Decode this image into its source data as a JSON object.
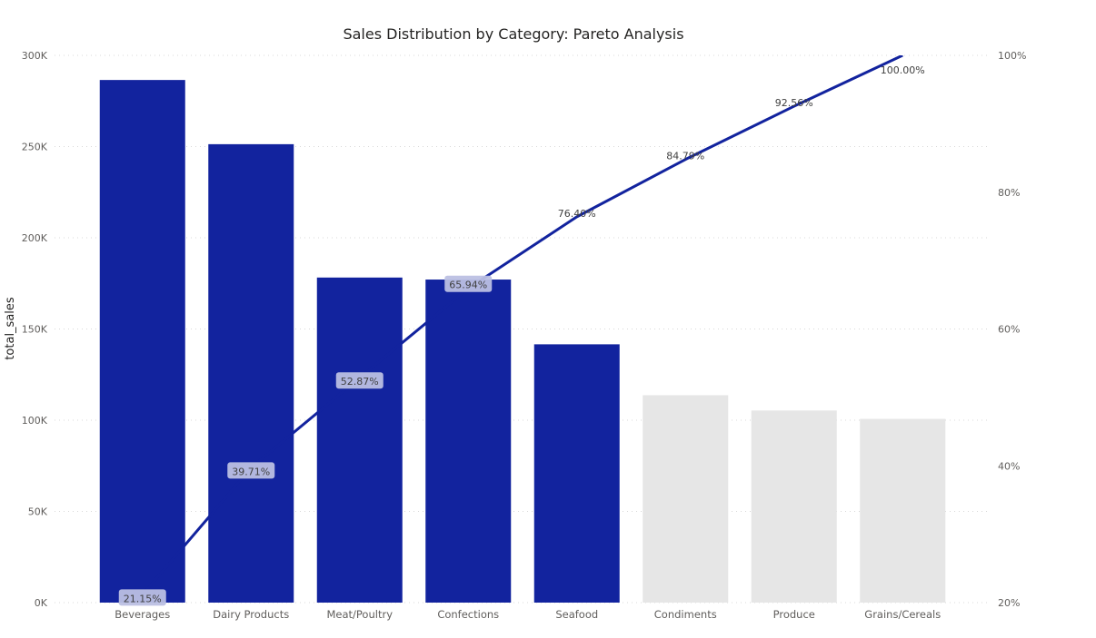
{
  "chart_data": {
    "type": "bar",
    "title": "Sales Distribution by Category: Pareto Analysis",
    "xlabel": "",
    "ylabel": "total_sales",
    "categories": [
      "Beverages",
      "Dairy Products",
      "Meat/Poultry",
      "Confections",
      "Seafood",
      "Condiments",
      "Produce",
      "Grains/Cereals"
    ],
    "series": [
      {
        "type": "bar",
        "values": [
          286500,
          251300,
          178200,
          177100,
          141600,
          113700,
          105300,
          100700
        ],
        "colors": [
          "#12239e",
          "#12239e",
          "#12239e",
          "#12239e",
          "#12239e",
          "#e6e6e6",
          "#e6e6e6",
          "#e6e6e6"
        ]
      },
      {
        "type": "line",
        "axis": "right",
        "values": [
          21.15,
          39.71,
          52.87,
          65.94,
          76.4,
          84.79,
          92.56,
          100.0
        ],
        "labels": [
          "21.15%",
          "39.71%",
          "52.87%",
          "65.94%",
          "76.40%",
          "84.79%",
          "92.56%",
          "100.00%"
        ],
        "color": "#12239e"
      }
    ],
    "ylim": [
      0,
      300000
    ],
    "y_ticks": [
      "0K",
      "50K",
      "100K",
      "150K",
      "200K",
      "250K",
      "300K"
    ],
    "y2lim": [
      20,
      100
    ],
    "y2_ticks": [
      "20%",
      "40%",
      "60%",
      "80%",
      "100%"
    ],
    "grid": true,
    "legend": "none"
  }
}
